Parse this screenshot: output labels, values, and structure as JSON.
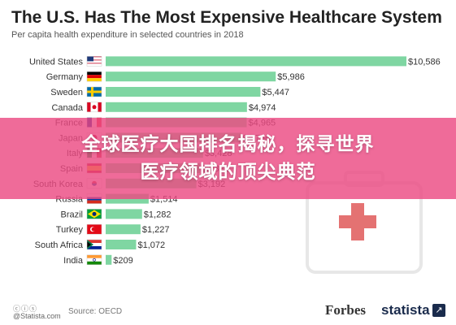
{
  "header": {
    "title": "The U.S. Has The Most Expensive Healthcare System",
    "subtitle": "Per capita health expenditure in selected countries in 2018"
  },
  "banner": {
    "line1": "全球医疗大国排名揭秘，探寻世界",
    "line2": "医疗领域的顶尖典范",
    "color": "#ec4a82"
  },
  "footer": {
    "cc": "ⓒⓘⓢ",
    "statista_url": "@Statista.com",
    "source": "Source: OECD",
    "forbes": "Forbes",
    "statista": "statista"
  },
  "chart_data": {
    "type": "bar",
    "orientation": "horizontal",
    "bar_color": "#7fd6a2",
    "categories": [
      "United States",
      "Germany",
      "Sweden",
      "Canada",
      "France",
      "Japan",
      "Italy",
      "Spain",
      "South Korea",
      "Russia",
      "Brazil",
      "Turkey",
      "South Africa",
      "India"
    ],
    "values": [
      10586,
      5986,
      5447,
      4974,
      4965,
      4766,
      3428,
      3323,
      3192,
      1514,
      1282,
      1227,
      1072,
      209
    ],
    "labels": [
      "$10,586",
      "$5,986",
      "$5,447",
      "$4,974",
      "$4,965",
      "$4,766",
      "$3,428",
      "$3,323",
      "$3,192",
      "$1,514",
      "$1,282",
      "$1,227",
      "$1,072",
      "$209"
    ],
    "flags": [
      "us",
      "de",
      "se",
      "ca",
      "fr",
      "jp",
      "it",
      "es",
      "kr",
      "ru",
      "br",
      "tr",
      "za",
      "in"
    ],
    "xlim": [
      0,
      10586
    ]
  }
}
